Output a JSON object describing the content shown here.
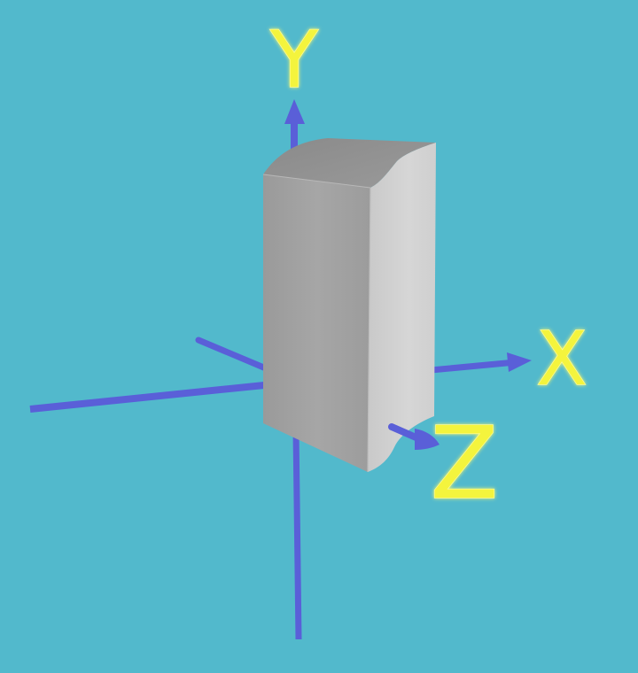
{
  "diagram": {
    "axes": {
      "x_label": "X",
      "y_label": "Y",
      "z_label": "Z"
    },
    "colors": {
      "background": "#52b9cc",
      "axis": "#5a5fd8",
      "label": "#f4f43c",
      "label_glow": "#fbfb9a",
      "object_front": "#a3a3a3",
      "object_side": "#d4d4d4",
      "object_top": "#8f8f8f"
    }
  }
}
